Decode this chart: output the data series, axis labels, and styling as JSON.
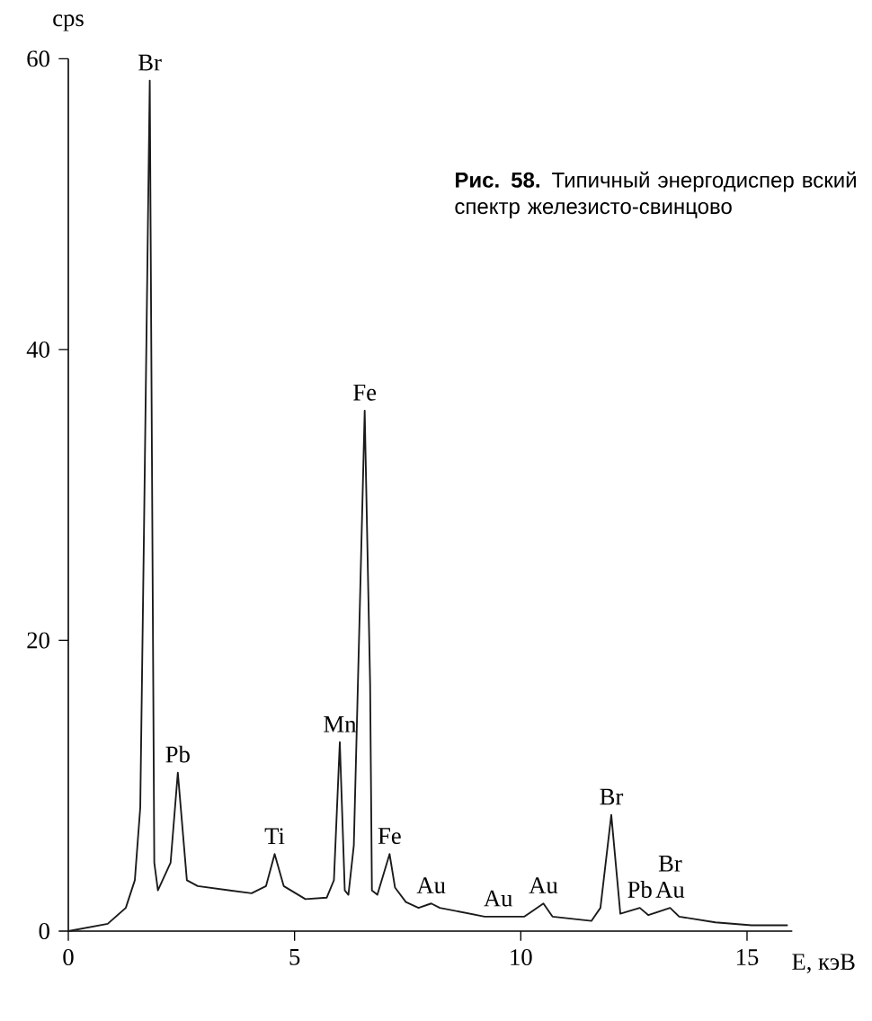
{
  "chart_data": {
    "type": "line",
    "xlabel": "E, кэВ",
    "ylabel": "cps",
    "xlim": [
      0,
      16
    ],
    "ylim": [
      0,
      60
    ],
    "xticks": [
      0,
      5,
      10,
      15
    ],
    "yticks": [
      0,
      20,
      40,
      60
    ],
    "color": "#1a1a1a",
    "x": [
      0,
      0.87,
      1.27,
      1.47,
      1.59,
      1.67,
      1.8,
      1.9,
      1.98,
      2.26,
      2.42,
      2.62,
      2.86,
      4.05,
      4.37,
      4.56,
      4.76,
      5.24,
      5.71,
      5.87,
      6.0,
      6.11,
      6.19,
      6.31,
      6.43,
      6.55,
      6.67,
      6.71,
      6.83,
      7.1,
      7.22,
      7.46,
      7.74,
      8.02,
      8.21,
      9.2,
      9.5,
      9.8,
      10.08,
      10.5,
      10.7,
      11.56,
      11.76,
      12.0,
      12.2,
      12.63,
      12.82,
      13.3,
      13.5,
      14.3,
      15.1,
      15.9
    ],
    "values": [
      0,
      0.5,
      1.6,
      3.5,
      8.5,
      27,
      58.5,
      4.7,
      2.8,
      4.7,
      10.9,
      3.5,
      3.1,
      2.6,
      3.1,
      5.3,
      3.1,
      2.2,
      2.3,
      3.5,
      13.0,
      2.8,
      2.5,
      5.9,
      20.7,
      35.8,
      17,
      2.8,
      2.5,
      5.3,
      3.0,
      2.0,
      1.6,
      1.9,
      1.6,
      1.0,
      1.0,
      1.0,
      1.0,
      1.9,
      1.0,
      0.7,
      1.6,
      8.0,
      1.2,
      1.6,
      1.1,
      1.6,
      1.0,
      0.6,
      0.4,
      0.4
    ],
    "annotations": [
      "**Рис. 58.** Типичный энергодиспер вский спектр железисто-свинцово",
      {
        "text": "Br",
        "x": 1.8,
        "y": 58.5
      },
      {
        "text": "Pb",
        "x": 2.42,
        "y": 10.9
      },
      {
        "text": "Ti",
        "x": 4.56,
        "y": 5.3
      },
      {
        "text": "Mn",
        "x": 6.0,
        "y": 13.0
      },
      {
        "text": "Fe",
        "x": 6.55,
        "y": 35.8
      },
      {
        "text": "Fe",
        "x": 7.1,
        "y": 5.3
      },
      {
        "text": "Au",
        "x": 8.02,
        "y": 1.9
      },
      {
        "text": "Au",
        "x": 9.5,
        "y": 1.0
      },
      {
        "text": "Au",
        "x": 10.5,
        "y": 1.9
      },
      {
        "text": "Br",
        "x": 12.0,
        "y": 8.0
      },
      {
        "text": "Pb",
        "x": 12.63,
        "y": 1.6
      },
      {
        "text": "Au",
        "x": 13.3,
        "y": 1.6
      },
      {
        "text": "Br",
        "x": 13.3,
        "y": 1.6
      }
    ]
  }
}
